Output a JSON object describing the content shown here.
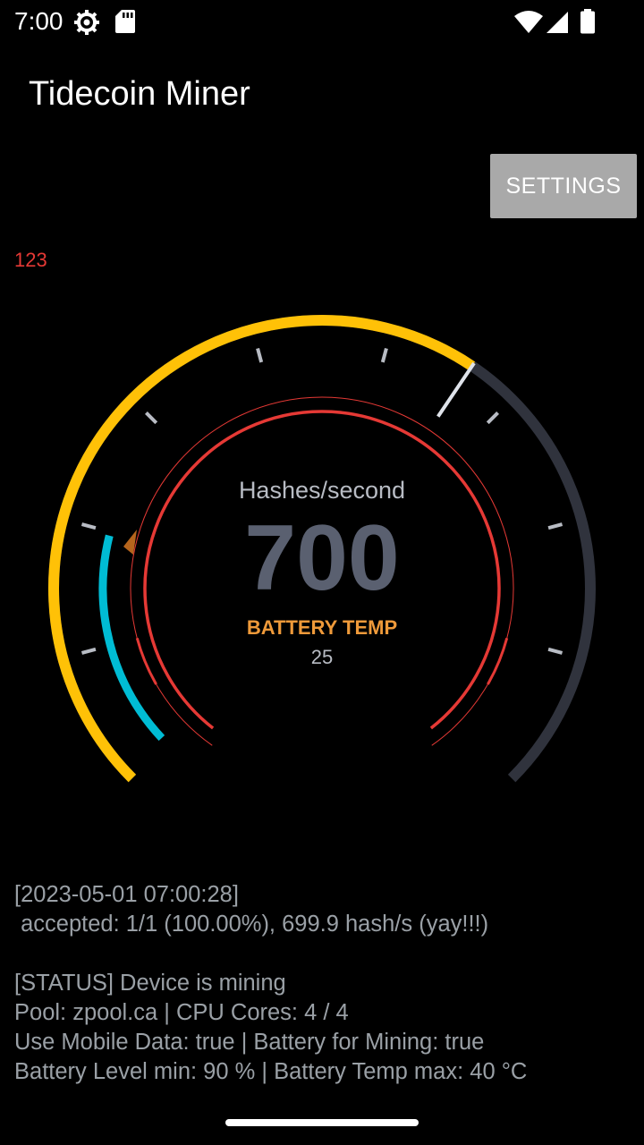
{
  "status_bar": {
    "time": "7:00",
    "icons": [
      "gear-icon",
      "sdcard-icon",
      "wifi-icon",
      "signal-icon",
      "battery-icon"
    ]
  },
  "app": {
    "title": "Tidecoin Miner"
  },
  "toolbar": {
    "settings_label": "SETTINGS"
  },
  "counter": "123",
  "gauge": {
    "label": "Hashes/second",
    "value": "700",
    "temp_label": "BATTERY TEMP",
    "temp_value": "25",
    "colors": {
      "arc": "#ffc107",
      "track": "#30333d",
      "inner": "#e53935",
      "temp": "#00bcd4"
    }
  },
  "log": {
    "line1": "[2023-05-01 07:00:28]",
    "line2": " accepted: 1/1 (100.00%), 699.9 hash/s (yay!!!)",
    "line3": "[STATUS] Device is mining",
    "line4": "Pool: zpool.ca | CPU Cores: 4 / 4",
    "line5": "Use Mobile Data: true | Battery for Mining: true",
    "line6": "Battery Level min: 90 % | Battery Temp max: 40 °C"
  }
}
